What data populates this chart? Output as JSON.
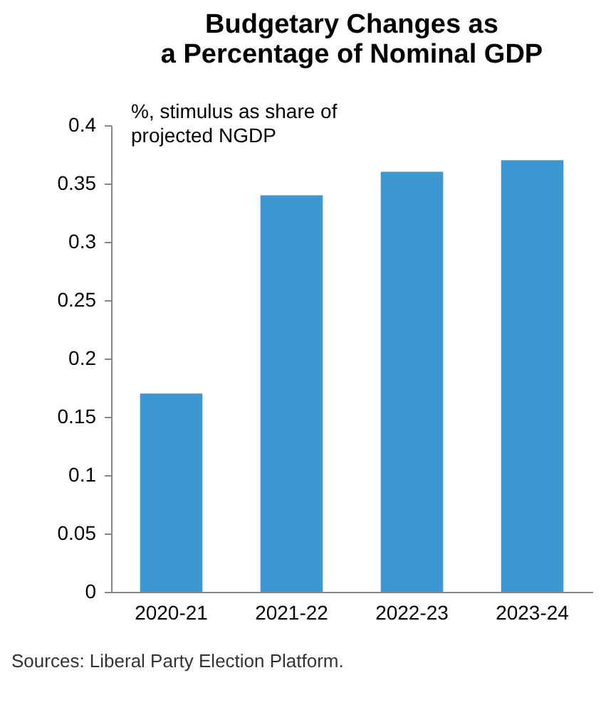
{
  "chart_data": {
    "type": "bar",
    "title": "Budgetary Changes as\na Percentage of Nominal GDP",
    "categories": [
      "2020-21",
      "2021-22",
      "2022-23",
      "2023-24"
    ],
    "values": [
      0.17,
      0.34,
      0.36,
      0.37
    ],
    "color": "#3d97d0",
    "ylim": [
      0,
      0.4
    ],
    "yticks": [
      0,
      0.05,
      0.1,
      0.15,
      0.2,
      0.25,
      0.3,
      0.35,
      0.4
    ],
    "grid": false,
    "annotations": [
      "%, stimulus as share of\nprojected NGDP",
      "Sources: Liberal Party Election Platform."
    ]
  }
}
